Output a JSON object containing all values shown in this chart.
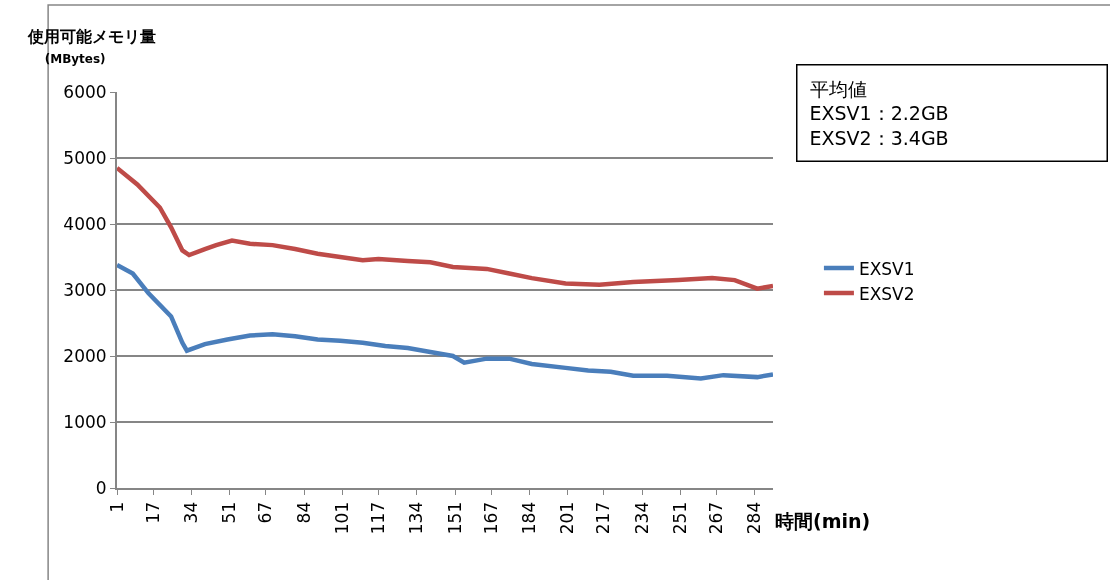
{
  "chart_data": {
    "type": "line",
    "ylabel": "使用可能メモリ量\n(MBytes)",
    "xlabel": "時間(min)",
    "xlim": [
      1,
      292
    ],
    "xticks": [
      1,
      17,
      34,
      51,
      67,
      84,
      101,
      117,
      134,
      151,
      167,
      184,
      201,
      217,
      234,
      251,
      267,
      284
    ],
    "ylim": [
      0,
      6000
    ],
    "yticks": [
      0,
      1000,
      2000,
      3000,
      4000,
      5000,
      6000
    ],
    "grid": "y",
    "legend": "right",
    "marker": "none",
    "line_style": "solid",
    "annotations": [
      "平均値",
      "EXSV1：2.2GB",
      "EXSV2：3.4GB"
    ],
    "series": [
      {
        "name": "EXSV1",
        "color": "#4a7ebb",
        "x": [
          1,
          8,
          15,
          25,
          30,
          32,
          40,
          50,
          60,
          70,
          80,
          90,
          100,
          110,
          120,
          130,
          140,
          150,
          155,
          165,
          175,
          185,
          200,
          210,
          220,
          230,
          245,
          260,
          270,
          285,
          292
        ],
        "values": [
          3380,
          3250,
          2950,
          2600,
          2200,
          2080,
          2180,
          2250,
          2310,
          2330,
          2300,
          2250,
          2230,
          2200,
          2150,
          2120,
          2060,
          2000,
          1900,
          1960,
          1960,
          1880,
          1820,
          1780,
          1760,
          1700,
          1700,
          1660,
          1710,
          1680,
          1720
        ]
      },
      {
        "name": "EXSV2",
        "color": "#be4b48",
        "x": [
          1,
          10,
          20,
          25,
          30,
          33,
          40,
          45,
          52,
          60,
          70,
          80,
          90,
          100,
          110,
          117,
          130,
          140,
          150,
          165,
          175,
          185,
          200,
          215,
          230,
          250,
          265,
          275,
          285,
          292
        ],
        "values": [
          4850,
          4600,
          4250,
          3950,
          3600,
          3530,
          3620,
          3680,
          3750,
          3700,
          3680,
          3620,
          3550,
          3500,
          3450,
          3470,
          3440,
          3420,
          3350,
          3320,
          3250,
          3180,
          3100,
          3080,
          3120,
          3150,
          3180,
          3150,
          3020,
          3060
        ]
      }
    ]
  }
}
